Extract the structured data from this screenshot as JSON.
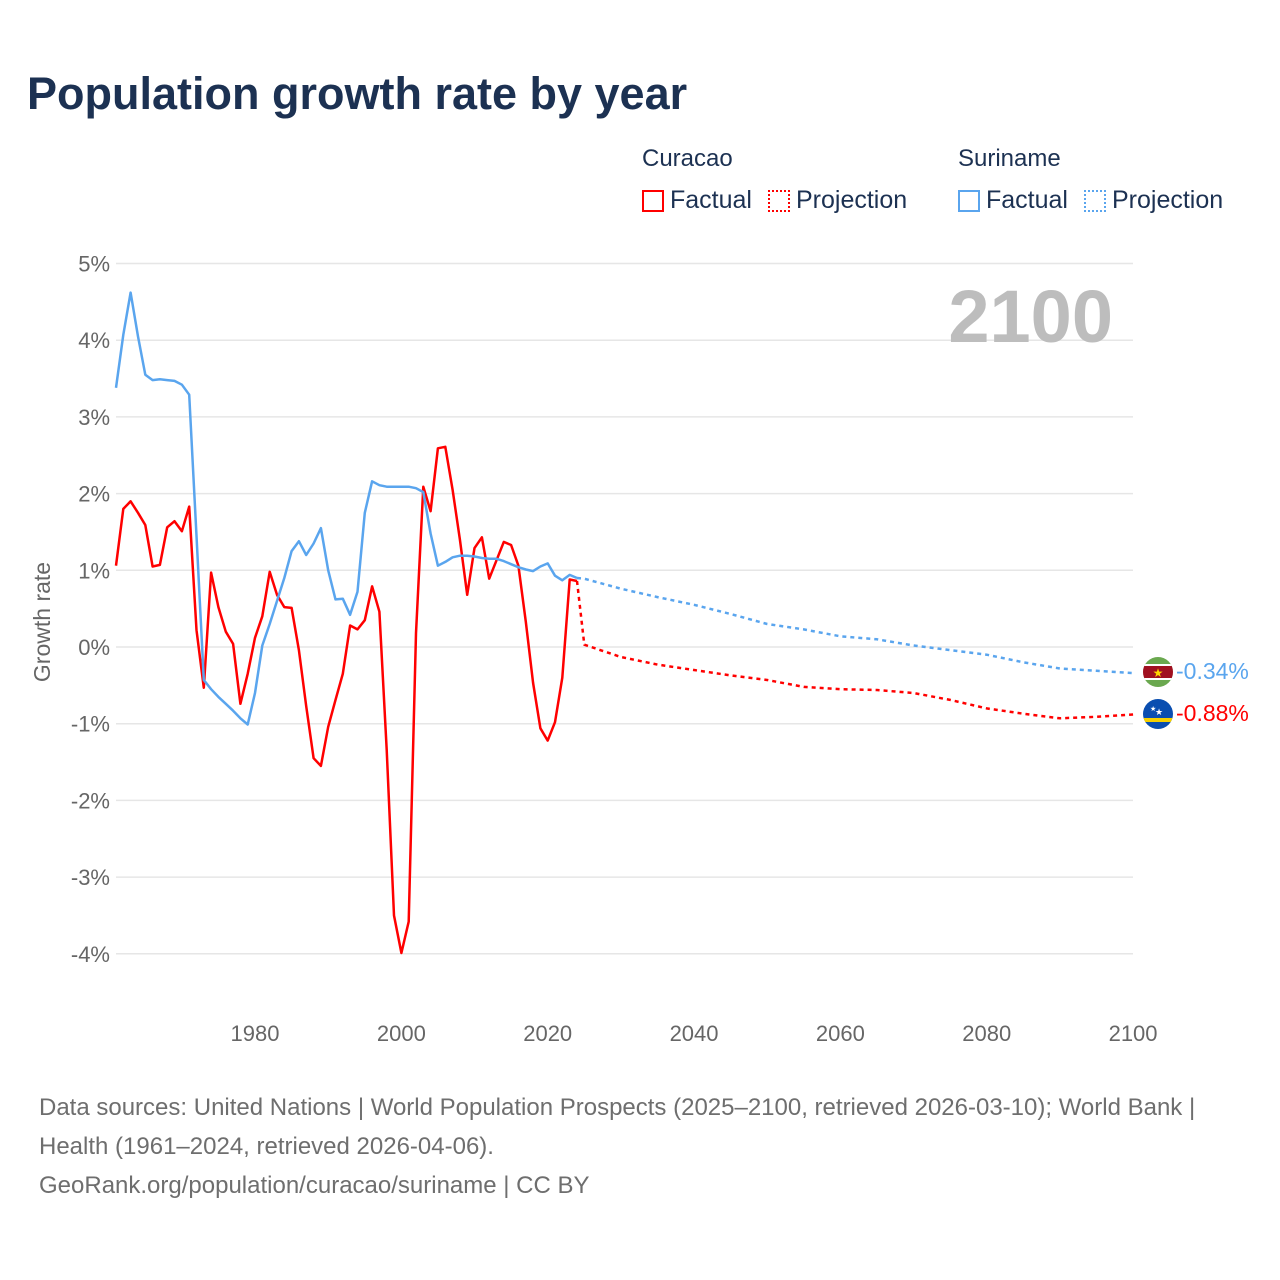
{
  "title": "Population growth rate by year",
  "legend": {
    "groups": [
      {
        "name": "Curacao",
        "color": "#ff0000",
        "factual_label": "Factual",
        "projection_label": "Projection"
      },
      {
        "name": "Suriname",
        "color": "#5aa5ee",
        "factual_label": "Factual",
        "projection_label": "Projection"
      }
    ]
  },
  "year_display": "2100",
  "end_labels": {
    "suriname": "-0.34%",
    "curacao": "-0.88%"
  },
  "footer": {
    "sources": "Data sources: United Nations | World Population Prospects (2025–2100, retrieved 2026-03-10); World Bank | Health (1961–2024, retrieved 2026-04-06).",
    "credit": "GeoRank.org/population/curacao/suriname | CC BY"
  },
  "chart_data": {
    "type": "line",
    "title": "Population growth rate by year",
    "xlabel": "",
    "ylabel": "Growth rate",
    "xlim": [
      1961,
      2100
    ],
    "ylim": [
      -4.5,
      5
    ],
    "grid": true,
    "x_ticks": [
      1980,
      2000,
      2020,
      2040,
      2060,
      2080,
      2100
    ],
    "x_tick_labels": [
      "1980",
      "2000",
      "2020",
      "2040",
      "2060",
      "2080",
      "2100"
    ],
    "y_ticks": [
      5,
      4,
      3,
      2,
      1,
      0,
      -1,
      -2,
      -3,
      -4
    ],
    "y_tick_labels": [
      "5%",
      "4%",
      "3%",
      "2%",
      "1%",
      "0%",
      "-1%",
      "-2%",
      "-3%",
      "-4%"
    ],
    "series": [
      {
        "name": "Curacao Factual",
        "color": "#ff0000",
        "dashed": false,
        "x_start": 1961,
        "values": [
          1.06,
          1.8,
          1.9,
          1.75,
          1.59,
          1.05,
          1.07,
          1.56,
          1.64,
          1.51,
          1.83,
          0.22,
          -0.53,
          0.97,
          0.52,
          0.2,
          0.04,
          -0.74,
          -0.35,
          0.12,
          0.4,
          0.98,
          0.68,
          0.52,
          0.51,
          -0.04,
          -0.77,
          -1.45,
          -1.55,
          -1.04,
          -0.69,
          -0.35,
          0.28,
          0.23,
          0.35,
          0.79,
          0.46,
          -1.34,
          -3.5,
          -3.99,
          -3.58,
          0.18,
          2.09,
          1.77,
          2.59,
          2.61,
          2.05,
          1.4,
          0.68,
          1.29,
          1.43,
          0.89,
          1.13,
          1.37,
          1.33,
          1.06,
          0.33,
          -0.47,
          -1.06,
          -1.22,
          -0.98,
          -0.4,
          0.88,
          0.86
        ]
      },
      {
        "name": "Curacao Projection",
        "color": "#ff0000",
        "dashed": true,
        "x": [
          2024,
          2025,
          2030,
          2035,
          2040,
          2045,
          2050,
          2055,
          2060,
          2065,
          2070,
          2075,
          2080,
          2085,
          2090,
          2095,
          2100
        ],
        "values": [
          0.86,
          0.03,
          -0.13,
          -0.23,
          -0.3,
          -0.37,
          -0.43,
          -0.52,
          -0.55,
          -0.56,
          -0.6,
          -0.69,
          -0.8,
          -0.87,
          -0.93,
          -0.91,
          -0.88
        ]
      },
      {
        "name": "Suriname Factual",
        "color": "#5aa5ee",
        "dashed": false,
        "x_start": 1961,
        "values": [
          3.38,
          4.07,
          4.62,
          4.05,
          3.55,
          3.48,
          3.49,
          3.48,
          3.47,
          3.42,
          3.29,
          1.45,
          -0.43,
          -0.55,
          -0.65,
          -0.74,
          -0.83,
          -0.93,
          -1.01,
          -0.6,
          0.02,
          0.3,
          0.6,
          0.9,
          1.25,
          1.38,
          1.2,
          1.35,
          1.55,
          1.0,
          0.62,
          0.63,
          0.42,
          0.72,
          1.75,
          2.16,
          2.11,
          2.09,
          2.09,
          2.09,
          2.09,
          2.07,
          2.02,
          1.48,
          1.06,
          1.11,
          1.17,
          1.19,
          1.19,
          1.18,
          1.16,
          1.15,
          1.15,
          1.12,
          1.08,
          1.04,
          1.01,
          0.99,
          1.05,
          1.09,
          0.93,
          0.87,
          0.94,
          0.9
        ]
      },
      {
        "name": "Suriname Projection",
        "color": "#5aa5ee",
        "dashed": true,
        "x": [
          2024,
          2025,
          2030,
          2035,
          2040,
          2045,
          2050,
          2055,
          2060,
          2065,
          2070,
          2075,
          2080,
          2085,
          2090,
          2095,
          2100
        ],
        "values": [
          0.9,
          0.89,
          0.76,
          0.65,
          0.55,
          0.43,
          0.3,
          0.23,
          0.14,
          0.1,
          0.02,
          -0.04,
          -0.1,
          -0.2,
          -0.28,
          -0.31,
          -0.34
        ]
      }
    ]
  }
}
